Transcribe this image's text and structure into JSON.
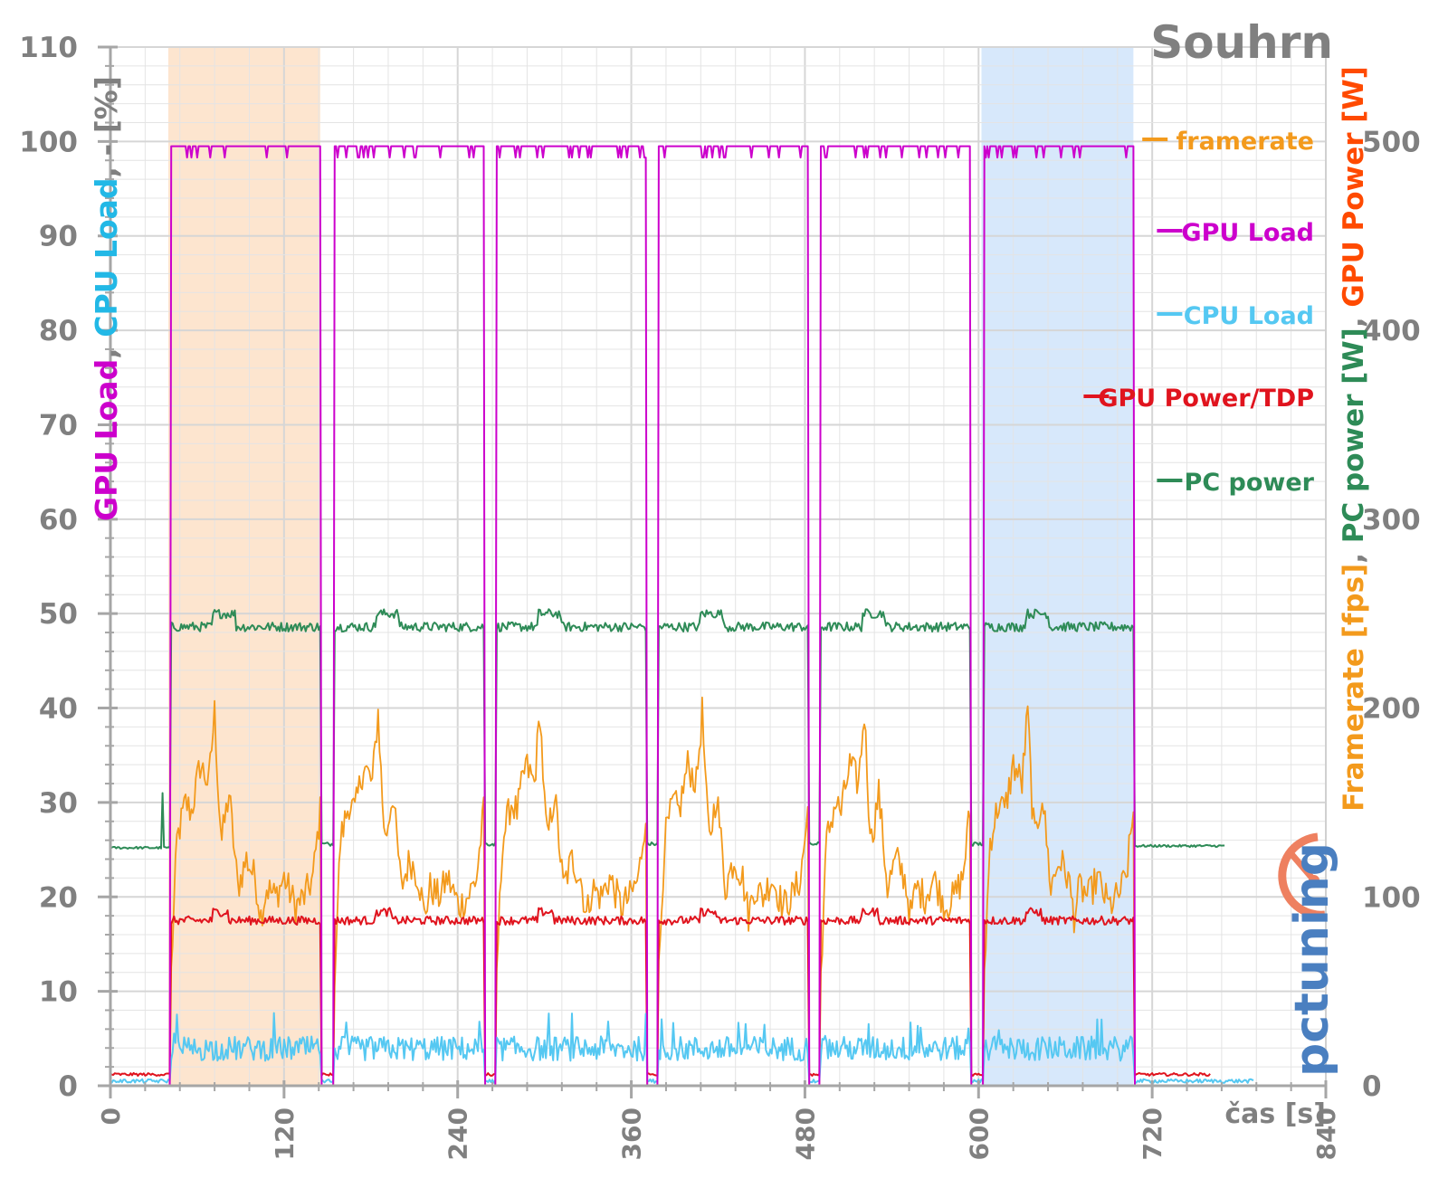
{
  "chart_data": {
    "type": "line",
    "title": "Souhrn",
    "xlabel": "čas [s]",
    "xlim": [
      0,
      840
    ],
    "x_ticks": [
      "0",
      "120",
      "240",
      "360",
      "480",
      "600",
      "720",
      "840"
    ],
    "y_left": {
      "label_parts": [
        {
          "text": "GPU Load",
          "color": "#cc00cc"
        },
        {
          "text": ", ",
          "color": "#808080"
        },
        {
          "text": "CPU Load",
          "color": "#22b8e6"
        },
        {
          "text": ", - [%]",
          "color": "#808080"
        }
      ],
      "ylim": [
        0,
        110
      ],
      "ticks": [
        "0",
        "10",
        "20",
        "30",
        "40",
        "50",
        "60",
        "70",
        "80",
        "90",
        "100",
        "110"
      ]
    },
    "y_right": {
      "label_parts": [
        {
          "text": "Framerate [fps]",
          "color": "#f39a1c"
        },
        {
          "text": ", ",
          "color": "#808080"
        },
        {
          "text": "PC power [W]",
          "color": "#2e8b57"
        },
        {
          "text": ", ",
          "color": "#808080"
        },
        {
          "text": "GPU Power [W]",
          "color": "#ff4a00"
        }
      ],
      "ylim": [
        0,
        550
      ],
      "ticks": [
        "0",
        "100",
        "200",
        "300",
        "400",
        "500"
      ]
    },
    "shaded_regions": [
      {
        "x0": 40,
        "x1": 145,
        "color": "#fde5cf"
      },
      {
        "x0": 602,
        "x1": 707,
        "color": "#d7e8fb"
      }
    ],
    "runs": [
      {
        "start": 42,
        "end": 145
      },
      {
        "start": 155,
        "end": 258
      },
      {
        "start": 267,
        "end": 370
      },
      {
        "start": 379,
        "end": 482
      },
      {
        "start": 491,
        "end": 594
      },
      {
        "start": 604,
        "end": 707
      }
    ],
    "series": [
      {
        "name": "framerate",
        "color": "#f39a1c",
        "axis": "right",
        "idle_value": 0,
        "pattern_x": [
          0,
          4,
          10,
          14,
          20,
          26,
          30,
          33,
          35,
          38,
          40,
          46,
          52,
          58,
          62,
          66,
          72,
          78,
          86,
          92,
          98,
          103
        ],
        "pattern_y": [
          60,
          130,
          150,
          145,
          170,
          160,
          198,
          150,
          130,
          145,
          155,
          105,
          120,
          110,
          90,
          105,
          100,
          110,
          95,
          100,
          110,
          145
        ]
      },
      {
        "name": "GPU Load",
        "color": "#cc00cc",
        "axis": "left",
        "idle_value": 0,
        "load_value": 99.5
      },
      {
        "name": "CPU Load",
        "color": "#55c8f2",
        "axis": "left",
        "idle_value": 0.3,
        "load_value": 3.8
      },
      {
        "name": "GPU Power/TDP",
        "color": "#e0141e",
        "axis": "left",
        "idle_value": 1.2,
        "load_value": 17.5
      },
      {
        "name": "PC power",
        "color": "#2e8b57",
        "axis": "right",
        "idle_value": 126,
        "end_idle_value": 127,
        "load_value": 243,
        "dip_value": 128,
        "spike": {
          "x": 36,
          "value": 155
        }
      }
    ],
    "legend": {
      "placement": "right",
      "entries": [
        "framerate",
        "GPU Load",
        "CPU Load",
        "GPU Power/TDP",
        "PC power"
      ]
    },
    "grid": true
  },
  "colors": {
    "grid": "#e4e4e4",
    "axis": "#a6a6a6",
    "tick_text": "#808080"
  },
  "logo": {
    "text": "pctuning",
    "icon": "gauge-icon"
  }
}
